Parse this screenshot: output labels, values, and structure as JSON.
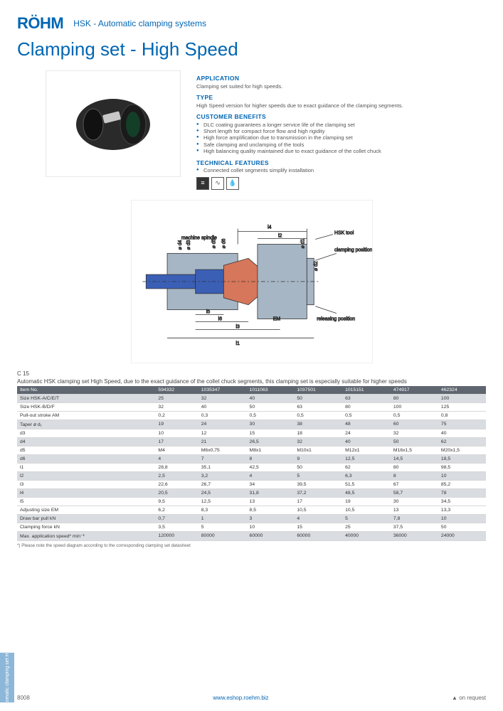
{
  "header": {
    "logo": "RÖHM",
    "category": "HSK - Automatic clamping systems",
    "title": "Clamping set - High Speed"
  },
  "info": {
    "application_head": "APPLICATION",
    "application_text": "Clamping set suited for high speeds.",
    "type_head": "TYPE",
    "type_text": "High Speed version for higher speeds due to exact guidance of the clamping segments.",
    "benefits_head": "CUSTOMER BENEFITS",
    "benefits": [
      "DLC coating guarantees a longer service life of the clamping set",
      "Short length for compact force flow and high rigidity",
      "High force amplification due to transmission in the clamping set",
      "Safe clamping and unclamping of the tools",
      "High balancing quality maintained due to exact guidance of the collet chuck"
    ],
    "features_head": "TECHNICAL FEATURES",
    "features": [
      "Connected collet segments simplify installation"
    ]
  },
  "diagram": {
    "labels": {
      "machine_spindle": "machine spindle",
      "hsk_tool": "HSK tool",
      "clamping_position": "clamping position",
      "releasing_position": "releasing position",
      "l1": "l1",
      "l2": "l2",
      "l3": "l3",
      "l4": "l4",
      "l5": "l5",
      "l6": "l6",
      "em": "EM",
      "d1": "⌀ d1",
      "d2": "⌀ d2",
      "d3": "⌀ d3",
      "d4": "⌀ d4",
      "d5": "⌀ d5",
      "d6": "⌀ d6"
    },
    "colors": {
      "body": "#3a5fb5",
      "collet": "#d6765a",
      "spindle": "#a7b6c5",
      "lines": "#333"
    }
  },
  "table": {
    "title": "C 15",
    "desc": "Automatic HSK clamping set High Speed, due to the exact guidance of the collet chuck segments, this clamping set is especially suitable for higher speeds",
    "columns": [
      "Item No.",
      "594332",
      "1035347",
      "1011063",
      "1037501",
      "1015151",
      "474917",
      "462324"
    ],
    "rows": [
      {
        "label": "Size HSK-A/C/E/T",
        "shade": true,
        "vals": [
          "25",
          "32",
          "40",
          "50",
          "63",
          "80",
          "100"
        ]
      },
      {
        "label": "Size HSK-B/D/F",
        "shade": false,
        "vals": [
          "32",
          "40",
          "50",
          "63",
          "80",
          "100",
          "125"
        ]
      },
      {
        "label": "Pull-out stroke AM",
        "shade": false,
        "vals": [
          "0,2",
          "0,3",
          "0,5",
          "0,5",
          "0,5",
          "0,5",
          "0,8"
        ]
      },
      {
        "label": "Taper ⌀ d₁",
        "shade": true,
        "vals": [
          "19",
          "24",
          "30",
          "38",
          "48",
          "60",
          "75"
        ]
      },
      {
        "label": "d3",
        "shade": false,
        "vals": [
          "10",
          "12",
          "15",
          "18",
          "24",
          "32",
          "40"
        ]
      },
      {
        "label": "d4",
        "shade": true,
        "vals": [
          "17",
          "21",
          "26,5",
          "32",
          "40",
          "50",
          "62"
        ]
      },
      {
        "label": "d5",
        "shade": false,
        "vals": [
          "M4",
          "M6x0,75",
          "M8x1",
          "M10x1",
          "M12x1",
          "M16x1,5",
          "M20x1,5"
        ]
      },
      {
        "label": "d6",
        "shade": true,
        "vals": [
          "4",
          "7",
          "8",
          "9",
          "12,5",
          "14,5",
          "18,5"
        ]
      },
      {
        "label": "l1",
        "shade": false,
        "vals": [
          "28,8",
          "35,1",
          "42,5",
          "50",
          "62",
          "80",
          "98,5"
        ]
      },
      {
        "label": "l2",
        "shade": true,
        "vals": [
          "2,5",
          "3,2",
          "4",
          "5",
          "6,3",
          "8",
          "10"
        ]
      },
      {
        "label": "l3",
        "shade": false,
        "vals": [
          "22,6",
          "26,7",
          "34",
          "39,5",
          "51,5",
          "67",
          "85,2"
        ]
      },
      {
        "label": "l4",
        "shade": true,
        "vals": [
          "20,5",
          "24,5",
          "31,8",
          "37,2",
          "48,5",
          "58,7",
          "78"
        ]
      },
      {
        "label": "l5",
        "shade": false,
        "vals": [
          "9,5",
          "12,5",
          "13",
          "17",
          "19",
          "30",
          "34,5"
        ]
      },
      {
        "label": "Adjusting size EM",
        "shade": false,
        "vals": [
          "6,2",
          "8,3",
          "8,5",
          "10,5",
          "10,5",
          "13",
          "13,3"
        ]
      },
      {
        "label": "Draw bar pull kN",
        "shade": true,
        "vals": [
          "0,7",
          "1",
          "3",
          "4",
          "5",
          "7,8",
          "10"
        ]
      },
      {
        "label": "Clamping force kN",
        "shade": false,
        "vals": [
          "3,5",
          "5",
          "10",
          "15",
          "25",
          "37,5",
          "50"
        ]
      },
      {
        "label": "Max. application speed* min⁻¹",
        "shade": true,
        "vals": [
          "120000",
          "80000",
          "60000",
          "60000",
          "40000",
          "36000",
          "24000"
        ]
      }
    ],
    "footnote": "*) Please note the speed diagram according to the corresponding clamping set datasheet"
  },
  "footer": {
    "page": "8008",
    "url": "www.eshop.roehm.biz",
    "onreq": "▲  on request"
  },
  "sidetab": "Automatic clamping set\nHSK"
}
